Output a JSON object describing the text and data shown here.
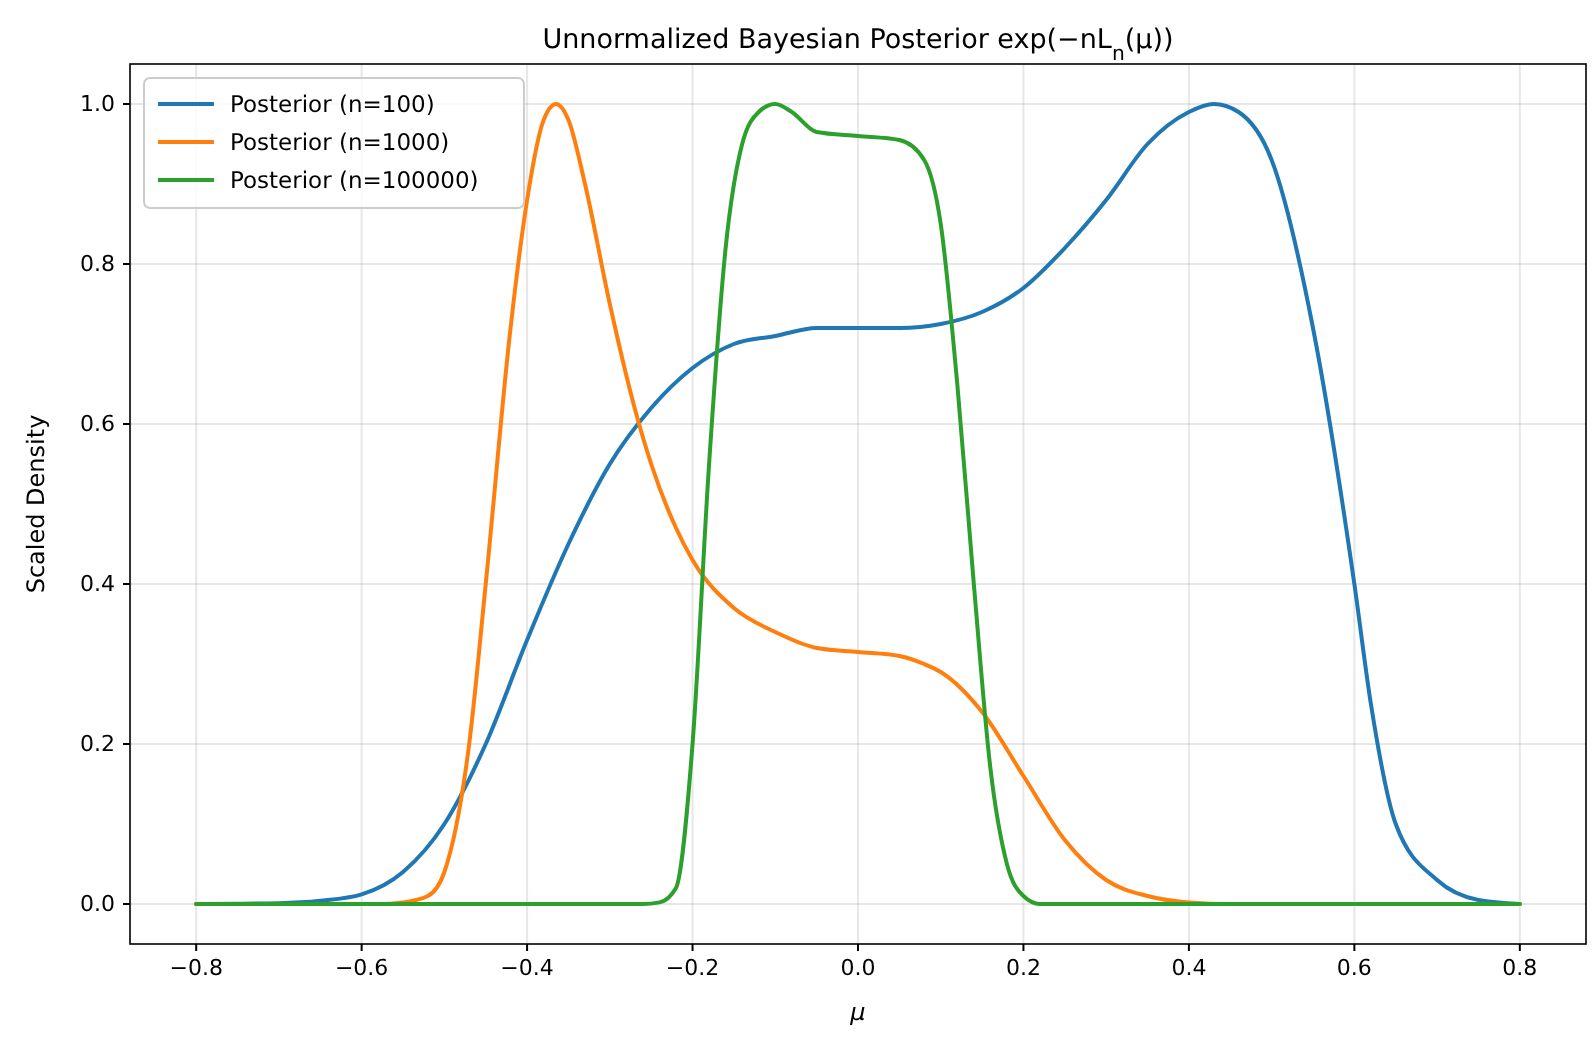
{
  "chart_data": {
    "type": "line",
    "title": "Unnormalized Bayesian Posterior exp(−nL$_{n}$(μ))",
    "xlabel": "μ",
    "ylabel": "Scaled Density",
    "xlim": [
      -0.88,
      0.88
    ],
    "ylim": [
      -0.05,
      1.05
    ],
    "xticks": [
      {
        "value": -0.8,
        "label": "−0.8"
      },
      {
        "value": -0.6,
        "label": "−0.6"
      },
      {
        "value": -0.4,
        "label": "−0.4"
      },
      {
        "value": -0.2,
        "label": "−0.2"
      },
      {
        "value": 0,
        "label": "0.0"
      },
      {
        "value": 0.2,
        "label": "0.2"
      },
      {
        "value": 0.4,
        "label": "0.4"
      },
      {
        "value": 0.6,
        "label": "0.6"
      },
      {
        "value": 0.8,
        "label": "0.8"
      }
    ],
    "yticks": [
      {
        "value": 0,
        "label": "0.0"
      },
      {
        "value": 0.2,
        "label": "0.2"
      },
      {
        "value": 0.4,
        "label": "0.4"
      },
      {
        "value": 0.6,
        "label": "0.6"
      },
      {
        "value": 0.8,
        "label": "0.8"
      },
      {
        "value": 1,
        "label": "1.0"
      }
    ],
    "grid": true,
    "legend": "top left",
    "line_style": "solid",
    "marker": "none",
    "series": [
      {
        "name": "Posterior (n=100)",
        "color": "#1f77b4",
        "x": [
          -0.8,
          -0.7,
          -0.65,
          -0.6,
          -0.55,
          -0.5,
          -0.45,
          -0.4,
          -0.35,
          -0.3,
          -0.25,
          -0.2,
          -0.15,
          -0.1,
          -0.05,
          0,
          0.05,
          0.1,
          0.15,
          0.2,
          0.25,
          0.3,
          0.35,
          0.4,
          0.43,
          0.46,
          0.5,
          0.55,
          0.6,
          0.62,
          0.65,
          0.7,
          0.75,
          0.8
        ],
        "values": [
          0,
          0.001,
          0.004,
          0.012,
          0.04,
          0.1,
          0.2,
          0.33,
          0.45,
          0.55,
          0.62,
          0.67,
          0.7,
          0.71,
          0.72,
          0.72,
          0.72,
          0.725,
          0.74,
          0.77,
          0.82,
          0.88,
          0.95,
          0.99,
          1.0,
          0.99,
          0.93,
          0.72,
          0.4,
          0.25,
          0.1,
          0.03,
          0.005,
          0
        ]
      },
      {
        "name": "Posterior (n=1000)",
        "color": "#ff7f0e",
        "x": [
          -0.8,
          -0.58,
          -0.55,
          -0.52,
          -0.5,
          -0.47,
          -0.45,
          -0.42,
          -0.4,
          -0.38,
          -0.365,
          -0.35,
          -0.33,
          -0.3,
          -0.27,
          -0.25,
          -0.22,
          -0.2,
          -0.15,
          -0.1,
          -0.05,
          0,
          0.05,
          0.08,
          0.1,
          0.15,
          0.2,
          0.25,
          0.3,
          0.35,
          0.4,
          0.45,
          0.8
        ],
        "values": [
          0,
          0,
          0.002,
          0.01,
          0.04,
          0.2,
          0.4,
          0.72,
          0.88,
          0.98,
          1.0,
          0.98,
          0.9,
          0.75,
          0.62,
          0.55,
          0.47,
          0.43,
          0.37,
          0.34,
          0.32,
          0.315,
          0.31,
          0.3,
          0.29,
          0.24,
          0.16,
          0.08,
          0.03,
          0.01,
          0.002,
          0,
          0
        ]
      },
      {
        "name": "Posterior (n=100000)",
        "color": "#2ca02c",
        "x": [
          -0.8,
          -0.26,
          -0.24,
          -0.22,
          -0.2,
          -0.18,
          -0.16,
          -0.14,
          -0.12,
          -0.1,
          -0.08,
          -0.05,
          0,
          0.05,
          0.08,
          0.1,
          0.12,
          0.14,
          0.16,
          0.18,
          0.2,
          0.22,
          0.8
        ],
        "values": [
          0,
          0,
          0.002,
          0.02,
          0.2,
          0.55,
          0.82,
          0.95,
          0.99,
          1.0,
          0.99,
          0.965,
          0.96,
          0.955,
          0.93,
          0.85,
          0.65,
          0.4,
          0.17,
          0.05,
          0.01,
          0,
          0
        ]
      }
    ]
  }
}
